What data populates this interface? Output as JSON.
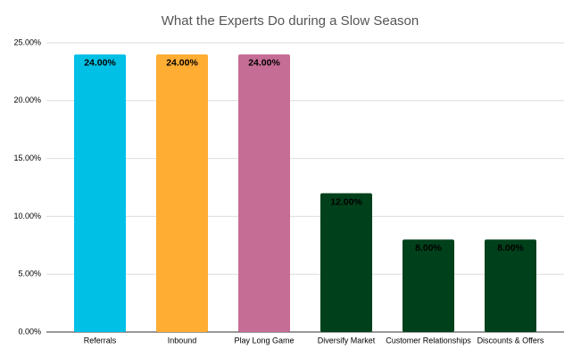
{
  "chart_data": {
    "type": "bar",
    "title": "What the Experts Do during a Slow Season",
    "categories": [
      "Referrals",
      "Inbound",
      "Play Long Game",
      "Diversify Market",
      "Customer Relationships",
      "Discounts & Offers"
    ],
    "values": [
      24,
      24,
      24,
      12,
      8,
      8
    ],
    "value_labels": [
      "24.00%",
      "24.00%",
      "24.00%",
      "12.00%",
      "8.00%",
      "8.00%"
    ],
    "colors": [
      "#00c0e6",
      "#ffad33",
      "#c66d95",
      "#00401a",
      "#00401a",
      "#00401a"
    ],
    "ylim": [
      0,
      25
    ],
    "yticks": [
      {
        "value": 0,
        "label": "0.00%"
      },
      {
        "value": 5,
        "label": "5.00%"
      },
      {
        "value": 10,
        "label": "10.00%"
      },
      {
        "value": 15,
        "label": "15.00%"
      },
      {
        "value": 20,
        "label": "20.00%"
      },
      {
        "value": 25,
        "label": "25.00%"
      }
    ],
    "grid": true
  }
}
